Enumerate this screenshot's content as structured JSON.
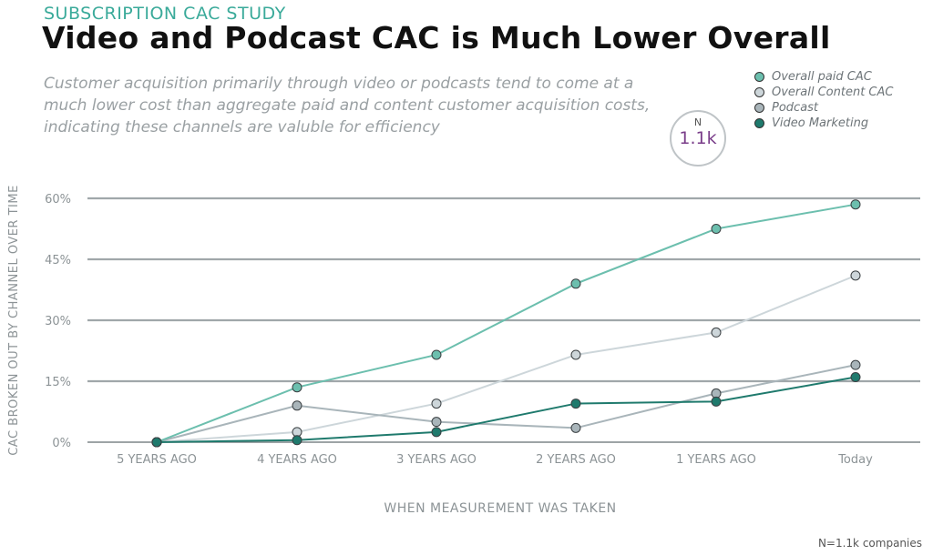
{
  "header": {
    "kicker": "SUBSCRIPTION CAC STUDY",
    "title": "Video and Podcast CAC is Much Lower Overall",
    "subtitle": "Customer acquisition primarily through video or podcasts tend to come at a much lower cost than aggregate paid and content customer acquisition costs, indicating these channels are valuble for efficiency"
  },
  "badge": {
    "top": "N",
    "value": "1.1k"
  },
  "footer": {
    "source": "N=1.1k companies"
  },
  "chart_data": {
    "type": "line",
    "categories": [
      "5 YEARS AGO",
      "4 YEARS AGO",
      "3 YEARS AGO",
      "2 YEARS AGO",
      "1 YEARS AGO",
      "Today"
    ],
    "xlabel": "WHEN MEASUREMENT WAS TAKEN",
    "ylabel": "CAC BROKEN OUT BY CHANNEL OVER TIME",
    "ylim": [
      0,
      60
    ],
    "yticks": [
      0,
      15,
      30,
      45,
      60
    ],
    "ytick_labels": [
      "0%",
      "15%",
      "30%",
      "45%",
      "60%"
    ],
    "grid": true,
    "legend_position": "top-right",
    "series": [
      {
        "name": "Overall paid CAC",
        "color": "#6cbfae",
        "values": [
          0,
          13.5,
          21.5,
          39,
          52.5,
          58.5
        ]
      },
      {
        "name": "Overall Content CAC",
        "color": "#cdd6da",
        "values": [
          0,
          2.5,
          9.5,
          21.5,
          27,
          41
        ]
      },
      {
        "name": "Podcast",
        "color": "#a9b5ba",
        "values": [
          0,
          9,
          5,
          3.5,
          12,
          19
        ]
      },
      {
        "name": "Video Marketing",
        "color": "#1f7a6d",
        "values": [
          0,
          0.5,
          2.5,
          9.5,
          10,
          16
        ]
      }
    ]
  }
}
